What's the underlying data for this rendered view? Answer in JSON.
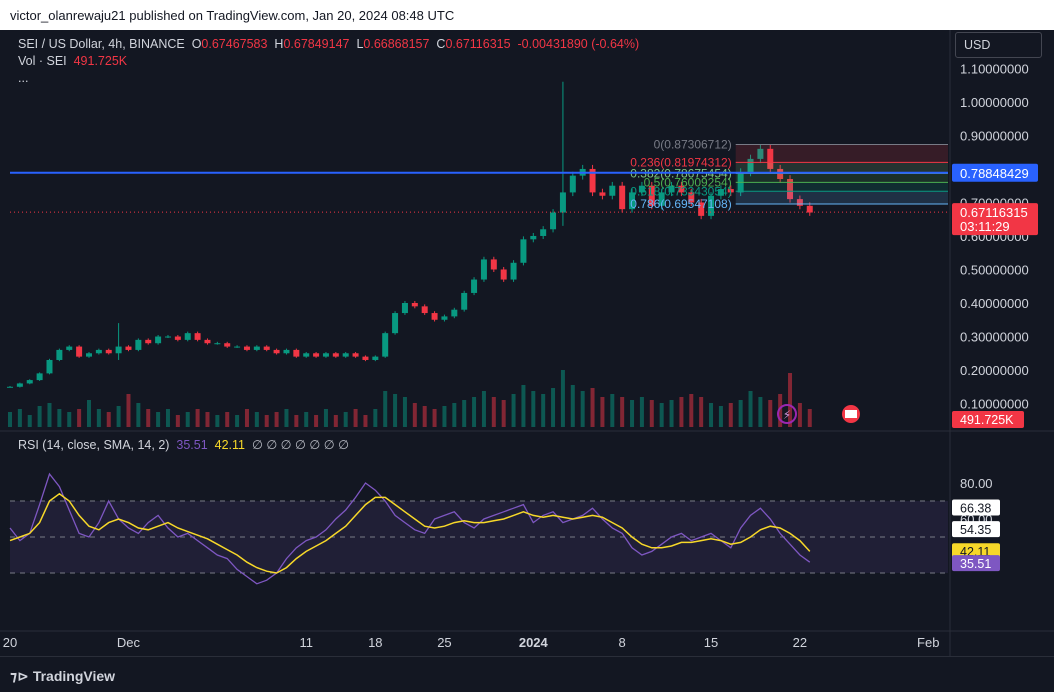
{
  "publisher_line": "victor_olanrewaju21 published on TradingView.com, Jan 20, 2024 08:48 UTC",
  "legend": {
    "symbol": "SEI / US Dollar, 4h, BINANCE",
    "open_label": "O",
    "open": "0.67467583",
    "high_label": "H",
    "high": "0.67849147",
    "low_label": "L",
    "low": "0.66868157",
    "close_label": "C",
    "close": "0.67116315",
    "change": "-0.00431890 (-0.64%)",
    "vol_label": "Vol · SEI",
    "vol": "491.725K",
    "more": "..."
  },
  "currency_button": "USD",
  "rsi_legend": {
    "label": "RSI (14, close, SMA, 14, 2)",
    "rsi": "35.51",
    "sma": "42.11",
    "empties": "∅ ∅ ∅ ∅ ∅ ∅ ∅"
  },
  "brand": "TradingView",
  "colors": {
    "up": "#089981",
    "down": "#f23645",
    "rsi": "#7e57c2",
    "sma": "#f7d829",
    "hline": "#2962ff",
    "background": "#131722"
  },
  "chart_data": {
    "type": "candlestick",
    "price_axis": {
      "ticks": [
        "1.10000000",
        "1.00000000",
        "0.90000000",
        "0.70000000",
        "0.60000000",
        "0.50000000",
        "0.40000000",
        "0.30000000",
        "0.20000000",
        "0.10000000"
      ],
      "tick_values": [
        1.1,
        1.0,
        0.9,
        0.7,
        0.6,
        0.5,
        0.4,
        0.3,
        0.2,
        0.1
      ],
      "ylim": [
        0.03,
        1.14
      ]
    },
    "time_axis": [
      "20",
      "Dec",
      "11",
      "18",
      "25",
      "2024",
      "8",
      "15",
      "22",
      "Feb"
    ],
    "time_index": [
      0,
      12,
      30,
      37,
      44,
      53,
      62,
      71,
      80,
      93
    ],
    "x_range": [
      0,
      95
    ],
    "price_path": [
      0.15,
      0.16,
      0.17,
      0.19,
      0.23,
      0.26,
      0.27,
      0.24,
      0.25,
      0.26,
      0.25,
      0.27,
      0.26,
      0.29,
      0.28,
      0.3,
      0.3,
      0.29,
      0.31,
      0.29,
      0.28,
      0.28,
      0.27,
      0.27,
      0.26,
      0.27,
      0.26,
      0.25,
      0.26,
      0.24,
      0.25,
      0.24,
      0.25,
      0.24,
      0.25,
      0.24,
      0.23,
      0.24,
      0.31,
      0.37,
      0.4,
      0.39,
      0.37,
      0.35,
      0.36,
      0.38,
      0.43,
      0.47,
      0.53,
      0.5,
      0.47,
      0.52,
      0.59,
      0.6,
      0.62,
      0.67,
      0.73,
      0.78,
      0.8,
      0.73,
      0.72,
      0.75,
      0.68,
      0.73,
      0.75,
      0.69,
      0.73,
      0.75,
      0.73,
      0.7,
      0.66,
      0.72,
      0.74,
      0.73,
      0.79,
      0.83,
      0.86,
      0.8,
      0.77,
      0.71,
      0.69,
      0.67
    ],
    "price_spikes": [
      {
        "i": 56,
        "high": 1.06,
        "low": 0.63
      },
      {
        "i": 11,
        "high": 0.34,
        "low": 0.23
      }
    ],
    "volume": {
      "last_label": "491.725K",
      "max": 1.0
    },
    "volume_path": [
      0.25,
      0.3,
      0.2,
      0.35,
      0.4,
      0.3,
      0.25,
      0.3,
      0.45,
      0.3,
      0.25,
      0.35,
      0.55,
      0.4,
      0.3,
      0.25,
      0.3,
      0.2,
      0.25,
      0.3,
      0.25,
      0.2,
      0.25,
      0.2,
      0.3,
      0.25,
      0.2,
      0.25,
      0.3,
      0.2,
      0.25,
      0.2,
      0.3,
      0.2,
      0.25,
      0.3,
      0.2,
      0.3,
      0.6,
      0.55,
      0.5,
      0.4,
      0.35,
      0.3,
      0.35,
      0.4,
      0.45,
      0.5,
      0.6,
      0.5,
      0.45,
      0.55,
      0.7,
      0.6,
      0.55,
      0.65,
      0.95,
      0.7,
      0.6,
      0.65,
      0.5,
      0.55,
      0.5,
      0.45,
      0.5,
      0.45,
      0.4,
      0.45,
      0.5,
      0.55,
      0.5,
      0.4,
      0.35,
      0.4,
      0.45,
      0.6,
      0.5,
      0.45,
      0.55,
      0.9,
      0.4,
      0.3
    ],
    "fib": [
      {
        "label": "0(0.87306712)",
        "value": 0.87306712,
        "color": "#787b86"
      },
      {
        "label": "0.236(0.81974312)",
        "value": 0.81974312,
        "color": "#f23645"
      },
      {
        "label": "0.382(0.78675454)",
        "value": 0.78675454,
        "color": "#81c784"
      },
      {
        "label": "0.5(0.76009254)",
        "value": 0.76009254,
        "color": "#4caf50"
      },
      {
        "label": "0.618(0.73343054)",
        "value": 0.73343054,
        "color": "#089981"
      },
      {
        "label": "0.786(0.69547108)",
        "value": 0.69547108,
        "color": "#64b5f6"
      }
    ],
    "hline": {
      "value": 0.78848429,
      "label": "0.78848429"
    },
    "last_price": {
      "value": 0.67116315,
      "label": "0.67116315",
      "countdown": "03:11:29"
    },
    "rsi_axis": {
      "ticks": [
        "80.00",
        "60.00"
      ],
      "tick_values": [
        80,
        60
      ],
      "ylim": [
        0,
        100
      ],
      "band": [
        70,
        30
      ],
      "mid": 50
    },
    "rsi_badges": [
      {
        "value": 66.38,
        "label": "66.38"
      },
      {
        "value": 54.35,
        "label": "54.35"
      },
      {
        "value": 42.11,
        "label": "42.11"
      },
      {
        "value": 35.51,
        "label": "35.51"
      }
    ],
    "rsi_path": [
      55,
      48,
      52,
      68,
      85,
      78,
      65,
      52,
      50,
      58,
      70,
      60,
      55,
      52,
      58,
      62,
      55,
      50,
      52,
      48,
      44,
      40,
      38,
      32,
      28,
      24,
      26,
      30,
      38,
      44,
      48,
      50,
      54,
      60,
      65,
      72,
      80,
      76,
      70,
      62,
      58,
      54,
      52,
      60,
      62,
      64,
      58,
      55,
      60,
      62,
      64,
      66,
      68,
      58,
      62,
      64,
      58,
      60,
      62,
      66,
      60,
      55,
      52,
      44,
      40,
      42,
      46,
      50,
      52,
      48,
      50,
      52,
      48,
      44,
      55,
      62,
      66,
      60,
      52,
      46,
      40,
      36
    ],
    "sma_path": [
      48,
      50,
      52,
      58,
      70,
      74,
      70,
      62,
      56,
      54,
      58,
      60,
      58,
      55,
      54,
      56,
      58,
      55,
      53,
      51,
      49,
      46,
      43,
      40,
      36,
      33,
      31,
      30,
      33,
      38,
      42,
      45,
      48,
      52,
      56,
      62,
      68,
      72,
      72,
      68,
      64,
      60,
      56,
      55,
      56,
      58,
      59,
      58,
      58,
      59,
      60,
      62,
      64,
      62,
      61,
      62,
      61,
      60,
      61,
      62,
      61,
      58,
      55,
      50,
      46,
      44,
      44,
      45,
      47,
      47,
      48,
      49,
      48,
      46,
      47,
      50,
      54,
      56,
      55,
      52,
      48,
      42
    ]
  }
}
